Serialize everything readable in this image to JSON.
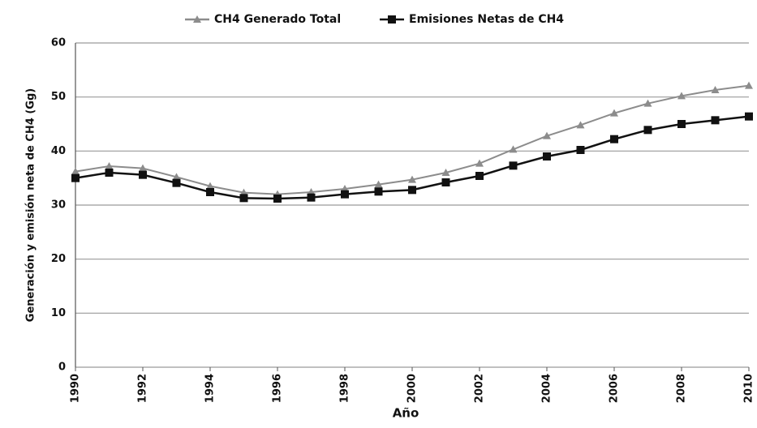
{
  "chart_data": {
    "type": "line",
    "xlabel": "Año",
    "ylabel": "Generación y emisión neta de CH4 (Gg)",
    "x": [
      1990,
      1991,
      1992,
      1993,
      1994,
      1995,
      1996,
      1997,
      1998,
      1999,
      2000,
      2001,
      2002,
      2003,
      2004,
      2005,
      2006,
      2007,
      2008,
      2009,
      2010
    ],
    "series": [
      {
        "name": "CH4 Generado Total",
        "color": "#8c8c8c",
        "marker": "triangle",
        "values": [
          36.2,
          37.2,
          36.8,
          35.2,
          33.5,
          32.3,
          32.0,
          32.4,
          33.0,
          33.8,
          34.7,
          36.0,
          37.7,
          40.3,
          42.8,
          44.8,
          47.0,
          48.8,
          50.2,
          51.3,
          52.1
        ]
      },
      {
        "name": "Emisiones Netas de CH4",
        "color": "#111111",
        "marker": "square",
        "values": [
          35.0,
          36.0,
          35.6,
          34.1,
          32.4,
          31.3,
          31.2,
          31.4,
          32.0,
          32.5,
          32.8,
          34.2,
          35.4,
          37.3,
          39.0,
          40.2,
          42.2,
          43.9,
          45.0,
          45.7,
          46.4
        ]
      }
    ],
    "xlim": [
      1990,
      2010
    ],
    "xticks": [
      1990,
      1992,
      1994,
      1996,
      1998,
      2000,
      2002,
      2004,
      2006,
      2008,
      2010
    ],
    "ylim": [
      0,
      60
    ],
    "yticks": [
      0,
      10,
      20,
      30,
      40,
      50,
      60
    ],
    "grid": true,
    "legend": "top"
  }
}
